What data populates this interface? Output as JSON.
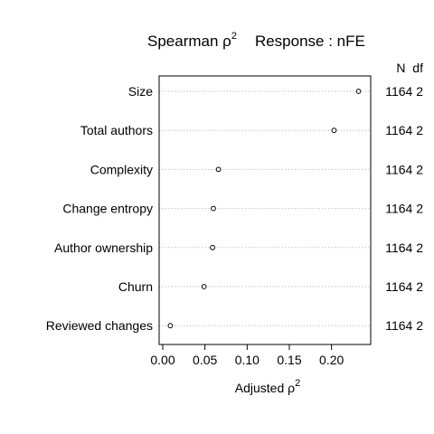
{
  "chart_data": {
    "type": "scatter",
    "title": {
      "main": "Spearman ρ",
      "main_superscript": "2",
      "response": "Response : nFE"
    },
    "xlabel": {
      "text": "Adjusted ρ",
      "superscript": "2"
    },
    "ylabel": "",
    "xlim": [
      0.0,
      0.24
    ],
    "xticks": [
      0.0,
      0.05,
      0.1,
      0.15,
      0.2
    ],
    "xtick_labels": [
      "0.00",
      "0.05",
      "0.10",
      "0.15",
      "0.20"
    ],
    "grid": "dotted horizontal per category",
    "right_header": "N  df",
    "categories": [
      "Size",
      "Total authors",
      "Complexity",
      "Change entropy",
      "Author ownership",
      "Churn",
      "Reviewed changes"
    ],
    "values": [
      0.232,
      0.203,
      0.066,
      0.06,
      0.059,
      0.049,
      0.009
    ],
    "right_labels": [
      "1164 2",
      "1164 2",
      "1164 2",
      "1164 2",
      "1164 2",
      "1164 2",
      "1164 2"
    ]
  }
}
